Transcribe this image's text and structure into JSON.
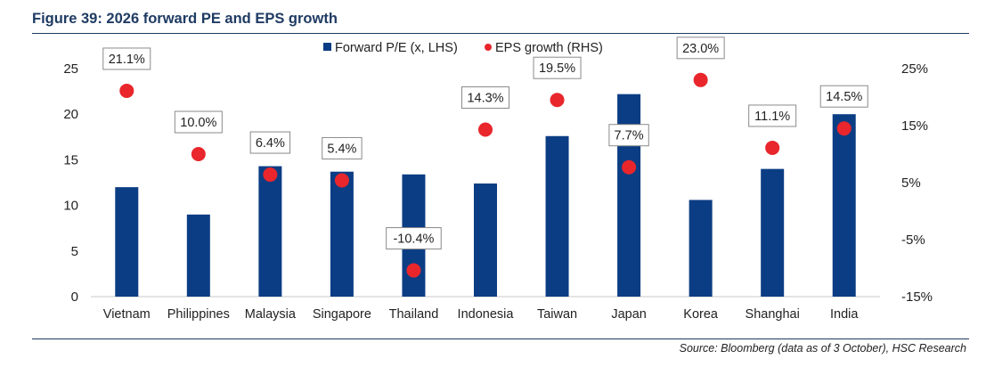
{
  "title": "Figure 39: 2026 forward PE and EPS growth",
  "source": "Source: Bloomberg (data as of 3 October), HSC Research",
  "chart_data": {
    "type": "bar",
    "title": "Figure 39: 2026 forward PE and EPS growth",
    "categories": [
      "Vietnam",
      "Philippines",
      "Malaysia",
      "Singapore",
      "Thailand",
      "Indonesia",
      "Taiwan",
      "Japan",
      "Korea",
      "Shanghai",
      "India"
    ],
    "series": [
      {
        "name": "Forward P/E (x, LHS)",
        "type": "bar",
        "axis": "left",
        "color": "#0b3d84",
        "values": [
          12.0,
          9.0,
          14.3,
          13.7,
          13.4,
          12.4,
          17.6,
          22.2,
          10.6,
          14.0,
          20.0
        ]
      },
      {
        "name": "EPS growth (RHS)",
        "type": "scatter",
        "axis": "right",
        "color": "#e8262c",
        "values": [
          21.1,
          10.0,
          6.4,
          5.4,
          -10.4,
          14.3,
          19.5,
          7.7,
          23.0,
          11.1,
          14.5
        ],
        "labels": [
          "21.1%",
          "10.0%",
          "6.4%",
          "5.4%",
          "-10.4%",
          "14.3%",
          "19.5%",
          "7.7%",
          "23.0%",
          "11.1%",
          "14.5%"
        ]
      }
    ],
    "y_left": {
      "ylim": [
        0,
        25
      ],
      "ticks": [
        "0",
        "5",
        "10",
        "15",
        "20",
        "25"
      ]
    },
    "y_right": {
      "ylim": [
        -15,
        25
      ],
      "ticks": [
        "-15%",
        "-5%",
        "5%",
        "15%",
        "25%"
      ]
    },
    "xlabel": "",
    "ylabel": "",
    "grid": false,
    "legend": {
      "position": "top-center",
      "entries": [
        "Forward P/E (x, LHS)",
        "EPS growth (RHS)"
      ]
    }
  }
}
